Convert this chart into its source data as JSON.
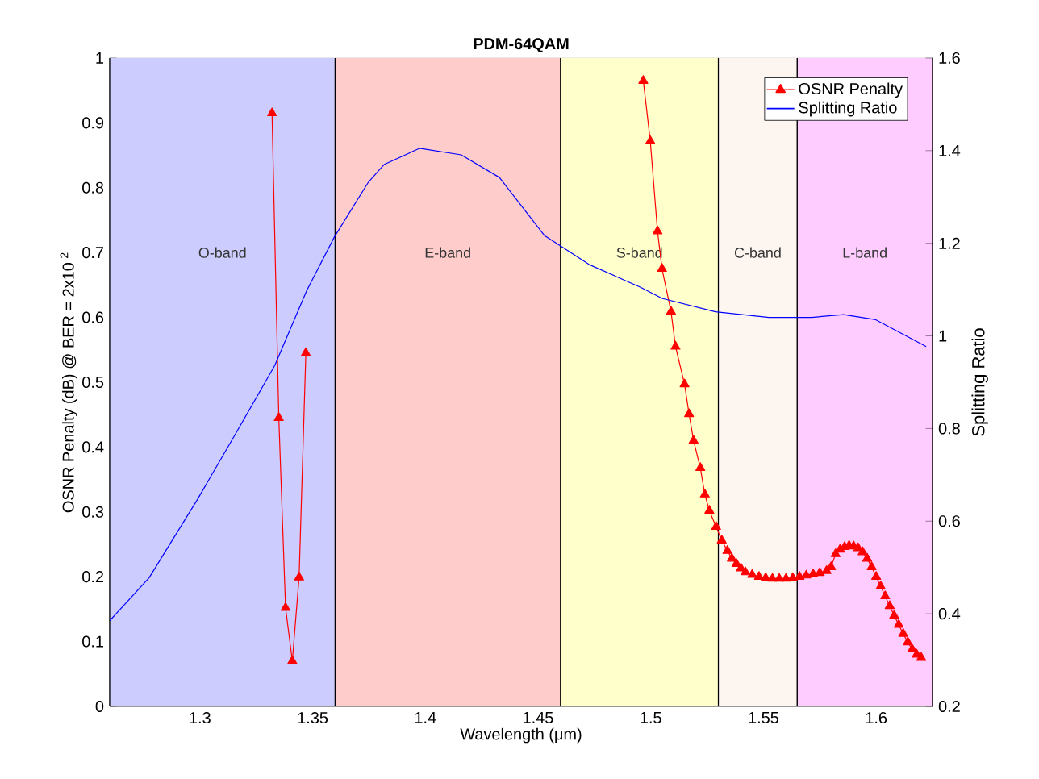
{
  "chart_data": {
    "type": "line",
    "title": "PDM-64QAM",
    "xlabel": "Wavelength (μm)",
    "ylabel": "OSNR Penalty (dB) @ BER = 2x10$^{-2}$",
    "y2label": "Splitting Ratio",
    "xlim": [
      1.26,
      1.625
    ],
    "xticks": [
      1.3,
      1.35,
      1.4,
      1.45,
      1.5,
      1.55,
      1.6
    ],
    "ylim": [
      0,
      1
    ],
    "yticks": [
      0,
      0.1,
      0.2,
      0.3,
      0.4,
      0.5,
      0.6,
      0.7,
      0.8,
      0.9,
      1
    ],
    "y2lim": [
      0.2,
      1.6
    ],
    "y2ticks": [
      0.2,
      0.4,
      0.6,
      0.8,
      1,
      1.2,
      1.4,
      1.6
    ],
    "grid": true,
    "legend": "top right",
    "bands": [
      {
        "axis": "x",
        "from": 1.26,
        "to": 1.36,
        "label": "O-band",
        "color": "#ccccff"
      },
      {
        "axis": "x",
        "from": 1.36,
        "to": 1.46,
        "label": "E-band",
        "color": "#ffcccc"
      },
      {
        "axis": "x",
        "from": 1.46,
        "to": 1.53,
        "label": "S-band",
        "color": "#ffffcc"
      },
      {
        "axis": "x",
        "from": 1.53,
        "to": 1.565,
        "label": "C-band",
        "color": "#fdf5f0"
      },
      {
        "axis": "x",
        "from": 1.565,
        "to": 1.625,
        "label": "L-band",
        "color": "#ffccff"
      }
    ],
    "series": [
      {
        "name": "OSNR Penalty",
        "color": "#ff0000",
        "marker": "triangle",
        "x": [
          1.332,
          1.335,
          1.338,
          1.341,
          1.344,
          1.347,
          1.42,
          1.4967,
          1.4998,
          1.503,
          1.505,
          1.509,
          1.511,
          1.515,
          1.517,
          1.519,
          1.522,
          1.524,
          1.526,
          1.529,
          1.5315,
          1.534,
          1.536,
          1.538,
          1.54,
          1.542,
          1.545,
          1.548,
          1.551,
          1.554,
          1.557,
          1.56,
          1.563,
          1.566,
          1.569,
          1.572,
          1.575,
          1.578,
          1.58,
          1.582,
          1.584,
          1.586,
          1.588,
          1.59,
          1.592,
          1.594,
          1.596,
          1.598,
          1.6,
          1.602,
          1.604,
          1.606,
          1.608,
          1.61,
          1.612,
          1.614,
          1.616,
          1.618,
          1.62
        ],
        "values": [
          0.915,
          0.445,
          0.152,
          0.07,
          0.199,
          0.545,
          null,
          0.965,
          0.872,
          0.733,
          0.675,
          0.609,
          0.555,
          0.497,
          0.451,
          0.41,
          0.368,
          0.327,
          0.302,
          0.277,
          0.256,
          0.24,
          0.228,
          0.22,
          0.213,
          0.207,
          0.203,
          0.2,
          0.198,
          0.197,
          0.197,
          0.197,
          0.198,
          0.2,
          0.202,
          0.204,
          0.206,
          0.209,
          0.215,
          0.235,
          0.242,
          0.246,
          0.248,
          0.247,
          0.244,
          0.238,
          0.228,
          0.215,
          0.2,
          0.185,
          0.17,
          0.155,
          0.14,
          0.126,
          0.112,
          0.099,
          0.088,
          0.08,
          0.075
        ]
      },
      {
        "name": "Splitting Ratio",
        "color": "#0000ff",
        "marker": "none",
        "axis": "y2",
        "x": [
          1.26,
          1.2775,
          1.2988,
          1.3154,
          1.3332,
          1.3474,
          1.3597,
          1.3746,
          1.3817,
          1.3974,
          1.4159,
          1.4329,
          1.4528,
          1.4727,
          1.4955,
          1.505,
          1.5287,
          1.5524,
          1.5713,
          1.5856,
          1.5998,
          1.6222
        ],
        "values": [
          0.385,
          0.478,
          0.646,
          0.785,
          0.936,
          1.098,
          1.214,
          1.331,
          1.37,
          1.405,
          1.391,
          1.342,
          1.217,
          1.154,
          1.105,
          1.081,
          1.052,
          1.04,
          1.04,
          1.046,
          1.035,
          0.977
        ]
      }
    ]
  }
}
